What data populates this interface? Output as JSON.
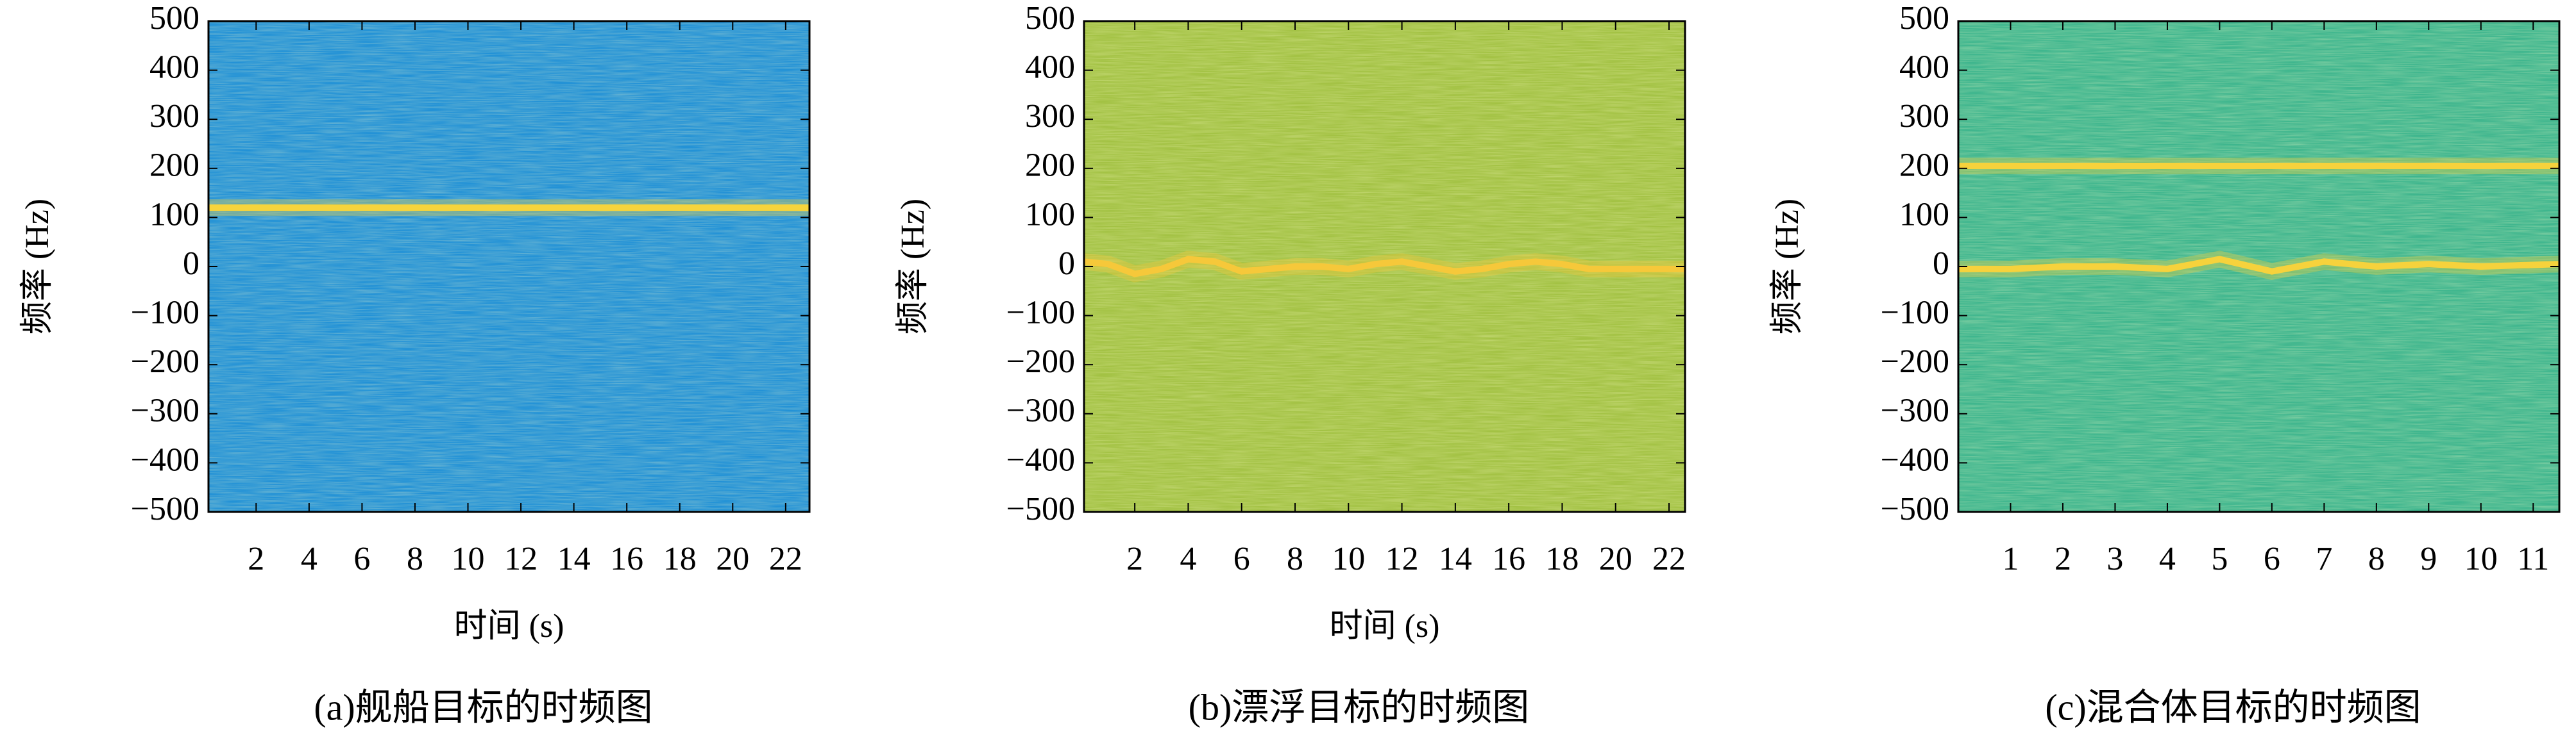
{
  "chart_data": [
    {
      "type": "spectrogram",
      "caption": "(a)舰船目标的时频图",
      "xlabel": "时间 (s)",
      "ylabel": "频率 (Hz)",
      "background": "#2392d6",
      "ridge_color": "#f6d43c",
      "xlim": [
        0.2,
        22.9
      ],
      "xticks": [
        2,
        4,
        6,
        8,
        10,
        12,
        14,
        16,
        18,
        20,
        22
      ],
      "ylim": [
        -500,
        500
      ],
      "yticks": [
        {
          "value": -500,
          "label": "−500"
        },
        {
          "value": -400,
          "label": "−400"
        },
        {
          "value": -300,
          "label": "−300"
        },
        {
          "value": -200,
          "label": "−200"
        },
        {
          "value": -100,
          "label": "−100"
        },
        0,
        100,
        200,
        300,
        400,
        500
      ],
      "ridges": [
        {
          "x": [
            0.2,
            22.9
          ],
          "values": [
            120,
            120
          ]
        }
      ]
    },
    {
      "type": "spectrogram",
      "caption": "(b)漂浮目标的时频图",
      "xlabel": "时间 (s)",
      "ylabel": "频率 (Hz)",
      "background": "#a3c244",
      "ridge_color": "#f6c83a",
      "xlim": [
        0.1,
        22.6
      ],
      "xticks": [
        2,
        4,
        6,
        8,
        10,
        12,
        14,
        16,
        18,
        20,
        22
      ],
      "ylim": [
        -500,
        500
      ],
      "yticks": [
        {
          "value": -500,
          "label": "−500"
        },
        {
          "value": -400,
          "label": "−400"
        },
        {
          "value": -300,
          "label": "−300"
        },
        {
          "value": -200,
          "label": "−200"
        },
        {
          "value": -100,
          "label": "−100"
        },
        0,
        100,
        200,
        300,
        400,
        500
      ],
      "ridges": [
        {
          "x": [
            0.1,
            1,
            2,
            3,
            4,
            5,
            6,
            7,
            8,
            9,
            10,
            11,
            12,
            13,
            14,
            15,
            16,
            17,
            18,
            19,
            20,
            21,
            22,
            22.6
          ],
          "values": [
            10,
            5,
            -15,
            -5,
            15,
            10,
            -10,
            -5,
            0,
            0,
            -5,
            5,
            10,
            0,
            -10,
            -5,
            5,
            10,
            5,
            -5,
            -5,
            -5,
            -5,
            -5
          ]
        }
      ]
    },
    {
      "type": "spectrogram",
      "caption": "(c)混合体目标的时频图",
      "ylabel": "频率 (Hz)",
      "background": "#3fb68e",
      "ridge_color": "#f6d23c",
      "xlim": [
        0,
        11.5
      ],
      "xticks": [
        1,
        2,
        3,
        4,
        5,
        6,
        7,
        8,
        9,
        10,
        11
      ],
      "ylim": [
        -500,
        500
      ],
      "yticks": [
        {
          "value": -500,
          "label": "−500"
        },
        {
          "value": -400,
          "label": "−400"
        },
        {
          "value": -300,
          "label": "−300"
        },
        {
          "value": -200,
          "label": "−200"
        },
        {
          "value": -100,
          "label": "−100"
        },
        0,
        100,
        200,
        300,
        400,
        500
      ],
      "ridges": [
        {
          "x": [
            0,
            11.5
          ],
          "values": [
            205,
            205
          ]
        },
        {
          "x": [
            0,
            1,
            2,
            3,
            4,
            5,
            6,
            7,
            8,
            9,
            10,
            11.5
          ],
          "values": [
            -5,
            -5,
            0,
            0,
            -5,
            15,
            -10,
            10,
            0,
            5,
            0,
            5
          ]
        }
      ]
    }
  ]
}
